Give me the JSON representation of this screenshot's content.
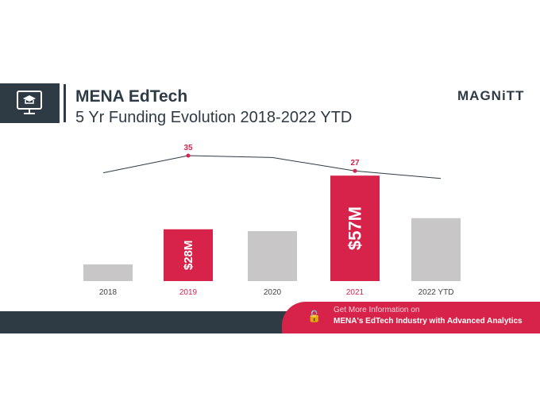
{
  "header": {
    "title": "MENA EdTech",
    "subtitle": "5 Yr Funding Evolution 2018-2022 YTD",
    "logo": "MAGNiTT",
    "icon": "monitor-graduation-cap-icon"
  },
  "chart_data": {
    "type": "bar",
    "categories": [
      "2018",
      "2019",
      "2020",
      "2021",
      "2022 YTD"
    ],
    "series": [
      {
        "type": "bar",
        "values": [
          9,
          28,
          27,
          57,
          34
        ],
        "unit": "$M",
        "data_labels": [
          null,
          "$28M",
          null,
          "$57M",
          null
        ]
      },
      {
        "type": "line",
        "values": [
          26,
          35,
          34,
          27,
          23
        ],
        "data_labels": [
          null,
          "35",
          null,
          "27",
          null
        ]
      }
    ],
    "highlight": [
      "2019",
      "2021"
    ],
    "colors": {
      "bar": "#c8c6c7",
      "highlight": "#d7234a",
      "line": "#2e3b45"
    }
  },
  "cta": {
    "line1": "Get More Information on",
    "line2": "MENA's EdTech Industry with Advanced Analytics",
    "icon": "lock-icon"
  }
}
